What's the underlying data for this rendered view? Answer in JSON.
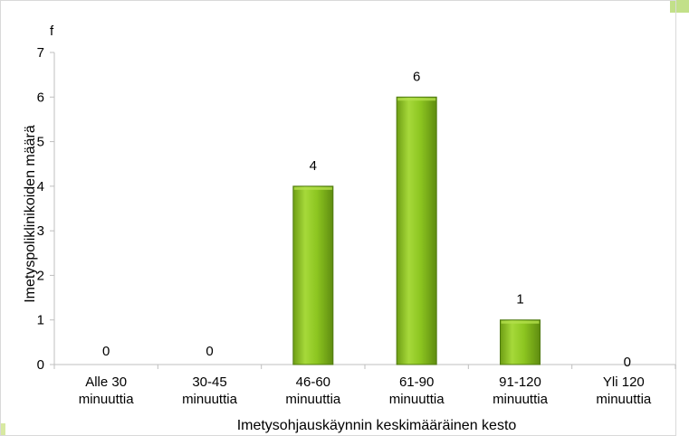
{
  "chart_data": {
    "type": "bar",
    "title": "",
    "ylabel_marker": "f",
    "ylabel": "Imetyspoliklinikoiden määrä",
    "xlabel": "Imetysohjauskäynnin keskimääräinen kesto",
    "categories": [
      [
        "Alle 30",
        "minuuttia"
      ],
      [
        "30-45",
        "minuuttia"
      ],
      [
        "46-60",
        "minuuttia"
      ],
      [
        "61-90",
        "minuuttia"
      ],
      [
        "91-120",
        "minuuttia"
      ],
      [
        "Yli 120",
        "minuuttia"
      ]
    ],
    "values": [
      0,
      0,
      4,
      6,
      1,
      0
    ],
    "data_labels": [
      "0",
      "0",
      "4",
      "6",
      "1",
      "0"
    ],
    "ylim": [
      0,
      7
    ],
    "yticks": [
      0,
      1,
      2,
      3,
      4,
      5,
      6,
      7
    ],
    "grid": false,
    "legend": "none",
    "bar_color": "#8cc520",
    "bar_highlight": "#b4e04c",
    "bar_edge": "#4f7a10"
  }
}
